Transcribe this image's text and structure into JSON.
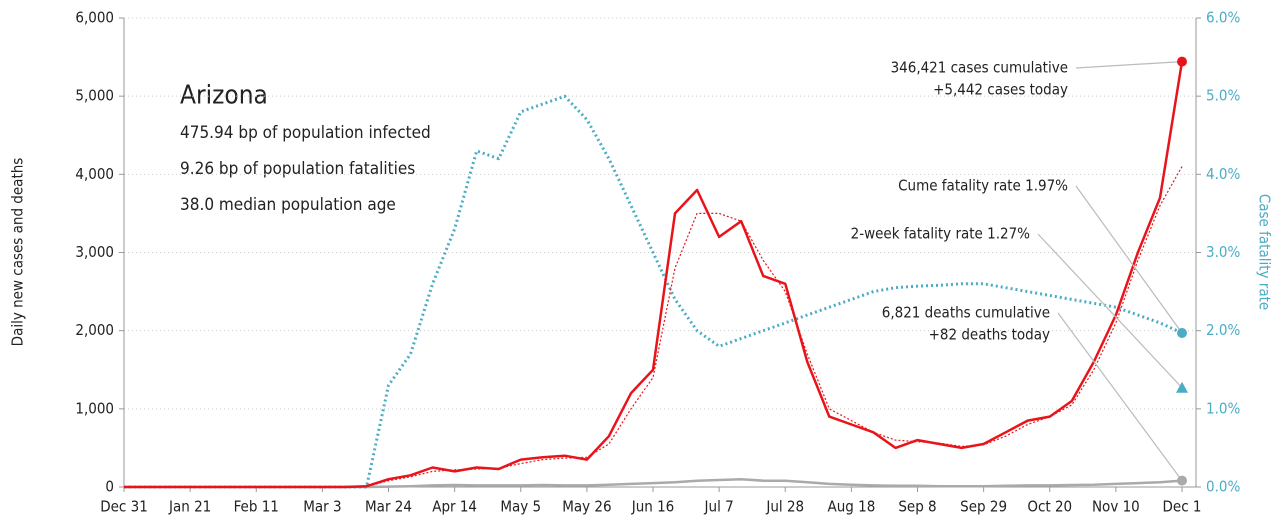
{
  "chart_data": {
    "type": "line",
    "categories": [
      "Dec 31",
      null,
      null,
      "Jan 21",
      null,
      null,
      "Feb 11",
      null,
      null,
      "Mar 3",
      null,
      null,
      "Mar 24",
      null,
      null,
      "Apr 14",
      null,
      null,
      "May 5",
      null,
      null,
      "May 26",
      null,
      null,
      "Jun 16",
      null,
      null,
      "Jul 7",
      null,
      null,
      "Jul 28",
      null,
      null,
      "Aug 18",
      null,
      null,
      "Sep 8",
      null,
      null,
      "Sep 29",
      null,
      null,
      "Oct 20",
      null,
      null,
      "Nov 10",
      null,
      null,
      "Dec 1"
    ],
    "ylabel": "Daily new cases and deaths",
    "y2label": "Case fatality rate",
    "ylim": [
      0,
      6000
    ],
    "yticks": [
      0,
      {
        "value": 1000,
        "label": "1,000"
      },
      {
        "value": 2000,
        "label": "2,000"
      },
      {
        "value": 3000,
        "label": "3,000"
      },
      {
        "value": 4000,
        "label": "4,000"
      },
      {
        "value": 5000,
        "label": "5,000"
      },
      {
        "value": 6000,
        "label": "6,000"
      }
    ],
    "y2lim": [
      0,
      6
    ],
    "y2ticks": [
      {
        "value": 0,
        "label": "0.0%"
      },
      {
        "value": 1,
        "label": "1.0%"
      },
      {
        "value": 2,
        "label": "2.0%"
      },
      {
        "value": 3,
        "label": "3.0%"
      },
      {
        "value": 4,
        "label": "4.0%"
      },
      {
        "value": 5,
        "label": "5.0%"
      },
      {
        "value": 6,
        "label": "6.0%"
      }
    ],
    "grid": true,
    "series": [
      {
        "color": "#e8141a",
        "style": "solid",
        "values": [
          0,
          0,
          0,
          0,
          0,
          0,
          0,
          0,
          0,
          0,
          0,
          10,
          100,
          150,
          250,
          200,
          250,
          230,
          350,
          380,
          400,
          350,
          650,
          1200,
          1500,
          3500,
          3800,
          3200,
          3400,
          2700,
          2600,
          1600,
          900,
          800,
          700,
          500,
          600,
          550,
          500,
          550,
          700,
          850,
          900,
          1100,
          1600,
          2200,
          3000,
          3700,
          5442
        ]
      },
      {
        "color": "#e8141a",
        "style": "dotted",
        "values": [
          0,
          0,
          0,
          0,
          0,
          0,
          0,
          0,
          0,
          0,
          0,
          5,
          80,
          130,
          200,
          220,
          230,
          240,
          300,
          350,
          370,
          380,
          550,
          1000,
          1400,
          2800,
          3500,
          3500,
          3400,
          2900,
          2500,
          1700,
          1000,
          850,
          700,
          600,
          580,
          560,
          520,
          540,
          650,
          800,
          900,
          1050,
          1500,
          2100,
          2900,
          3600,
          4100
        ]
      },
      {
        "color": "#aaaaaa",
        "style": "solid",
        "values": [
          0,
          0,
          0,
          0,
          0,
          0,
          0,
          0,
          0,
          0,
          0,
          0,
          5,
          10,
          20,
          25,
          20,
          20,
          20,
          25,
          20,
          20,
          30,
          40,
          50,
          60,
          80,
          90,
          100,
          80,
          80,
          60,
          40,
          30,
          20,
          15,
          15,
          10,
          10,
          10,
          15,
          20,
          20,
          25,
          30,
          40,
          50,
          60,
          82
        ]
      },
      {
        "color": "#4bacc6",
        "style": "dotted",
        "axis": "y2",
        "values": [
          0,
          0,
          0,
          0,
          0,
          0,
          0,
          0,
          0,
          0,
          0,
          0,
          1.3,
          1.7,
          2.6,
          3.3,
          4.3,
          4.2,
          4.8,
          4.9,
          5.0,
          4.7,
          4.2,
          3.6,
          3.0,
          2.4,
          2.0,
          1.8,
          1.9,
          2.0,
          2.1,
          2.2,
          2.3,
          2.4,
          2.5,
          2.55,
          2.57,
          2.58,
          2.6,
          2.6,
          2.55,
          2.5,
          2.45,
          2.4,
          2.35,
          2.3,
          2.2,
          2.1,
          1.97
        ]
      }
    ],
    "info": {
      "title": "Arizona",
      "lines": [
        "475.94 bp of population infected",
        "9.26 bp of population fatalities",
        "38.0 median population age"
      ]
    },
    "annotations": [
      {
        "lines": [
          "346,421 cases cumulative",
          "+5,442 cases today"
        ],
        "value": 5442,
        "marker": "circle",
        "color": "#e8141a"
      },
      {
        "lines": [
          "Cume fatality rate 1.97%"
        ],
        "value": 1.97,
        "axis": "y2",
        "marker": "circle",
        "color": "#4bacc6"
      },
      {
        "lines": [
          "2-week fatality rate 1.27%"
        ],
        "value": 1.27,
        "axis": "y2",
        "marker": "triangle",
        "color": "#4bacc6"
      },
      {
        "lines": [
          "6,821 deaths cumulative",
          "+82 deaths today"
        ],
        "value": 82,
        "marker": "circle",
        "color": "#aaaaaa"
      }
    ]
  }
}
